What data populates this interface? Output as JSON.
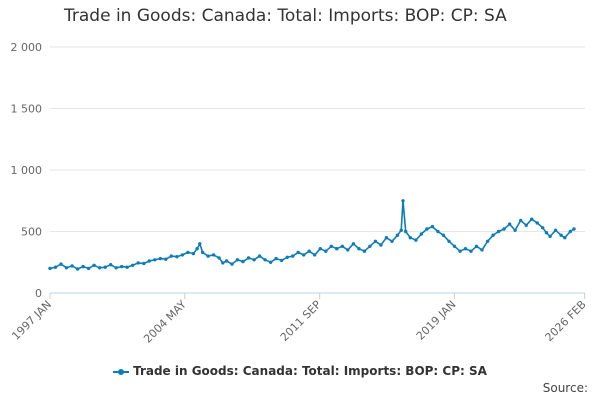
{
  "chart_data": {
    "type": "line",
    "title": "Trade in Goods: Canada: Total: Imports: BOP: CP: SA",
    "series": [
      {
        "name": "Trade in Goods: Canada: Total: Imports: BOP: CP: SA",
        "color": "#0d7db8",
        "points": [
          [
            1997.0,
            200
          ],
          [
            1997.3,
            210
          ],
          [
            1997.6,
            235
          ],
          [
            1997.9,
            205
          ],
          [
            1998.2,
            220
          ],
          [
            1998.5,
            195
          ],
          [
            1998.8,
            215
          ],
          [
            1999.1,
            200
          ],
          [
            1999.4,
            225
          ],
          [
            1999.7,
            205
          ],
          [
            2000.0,
            210
          ],
          [
            2000.3,
            230
          ],
          [
            2000.6,
            205
          ],
          [
            2000.9,
            215
          ],
          [
            2001.2,
            210
          ],
          [
            2001.5,
            225
          ],
          [
            2001.8,
            245
          ],
          [
            2002.1,
            240
          ],
          [
            2002.4,
            260
          ],
          [
            2002.7,
            270
          ],
          [
            2003.0,
            280
          ],
          [
            2003.3,
            275
          ],
          [
            2003.6,
            300
          ],
          [
            2003.9,
            295
          ],
          [
            2004.2,
            310
          ],
          [
            2004.5,
            330
          ],
          [
            2004.8,
            320
          ],
          [
            2005.0,
            360
          ],
          [
            2005.15,
            400
          ],
          [
            2005.3,
            330
          ],
          [
            2005.6,
            300
          ],
          [
            2005.9,
            310
          ],
          [
            2006.2,
            285
          ],
          [
            2006.4,
            245
          ],
          [
            2006.6,
            260
          ],
          [
            2006.9,
            235
          ],
          [
            2007.2,
            270
          ],
          [
            2007.5,
            255
          ],
          [
            2007.8,
            285
          ],
          [
            2008.1,
            270
          ],
          [
            2008.4,
            300
          ],
          [
            2008.7,
            270
          ],
          [
            2009.0,
            250
          ],
          [
            2009.3,
            280
          ],
          [
            2009.6,
            265
          ],
          [
            2009.9,
            290
          ],
          [
            2010.2,
            300
          ],
          [
            2010.5,
            330
          ],
          [
            2010.8,
            310
          ],
          [
            2011.1,
            340
          ],
          [
            2011.4,
            310
          ],
          [
            2011.7,
            360
          ],
          [
            2012.0,
            340
          ],
          [
            2012.3,
            380
          ],
          [
            2012.6,
            360
          ],
          [
            2012.9,
            380
          ],
          [
            2013.2,
            350
          ],
          [
            2013.5,
            400
          ],
          [
            2013.8,
            360
          ],
          [
            2014.1,
            340
          ],
          [
            2014.4,
            380
          ],
          [
            2014.7,
            420
          ],
          [
            2015.0,
            390
          ],
          [
            2015.3,
            450
          ],
          [
            2015.6,
            420
          ],
          [
            2015.9,
            470
          ],
          [
            2016.1,
            510
          ],
          [
            2016.2,
            750
          ],
          [
            2016.35,
            500
          ],
          [
            2016.6,
            450
          ],
          [
            2016.9,
            430
          ],
          [
            2017.2,
            480
          ],
          [
            2017.5,
            520
          ],
          [
            2017.8,
            540
          ],
          [
            2018.1,
            500
          ],
          [
            2018.4,
            470
          ],
          [
            2018.7,
            420
          ],
          [
            2019.0,
            380
          ],
          [
            2019.3,
            340
          ],
          [
            2019.6,
            360
          ],
          [
            2019.9,
            340
          ],
          [
            2020.2,
            380
          ],
          [
            2020.5,
            350
          ],
          [
            2020.8,
            420
          ],
          [
            2021.1,
            470
          ],
          [
            2021.4,
            500
          ],
          [
            2021.7,
            520
          ],
          [
            2022.0,
            560
          ],
          [
            2022.3,
            510
          ],
          [
            2022.6,
            590
          ],
          [
            2022.9,
            550
          ],
          [
            2023.2,
            600
          ],
          [
            2023.5,
            570
          ],
          [
            2023.8,
            530
          ],
          [
            2024.0,
            490
          ],
          [
            2024.2,
            460
          ],
          [
            2024.5,
            510
          ],
          [
            2024.8,
            470
          ],
          [
            2025.0,
            450
          ],
          [
            2025.3,
            500
          ],
          [
            2025.5,
            520
          ]
        ]
      }
    ],
    "x_tick_labels": [
      "1997 JAN",
      "2004 MAY",
      "2011 SEP",
      "2019 JAN",
      "2026 FEB"
    ],
    "y_tick_labels": [
      "0",
      "500",
      "1 000",
      "1 500",
      "2 000"
    ],
    "ylim": [
      0,
      2000
    ],
    "legend": "bottom-center",
    "source_label": "Source:"
  }
}
